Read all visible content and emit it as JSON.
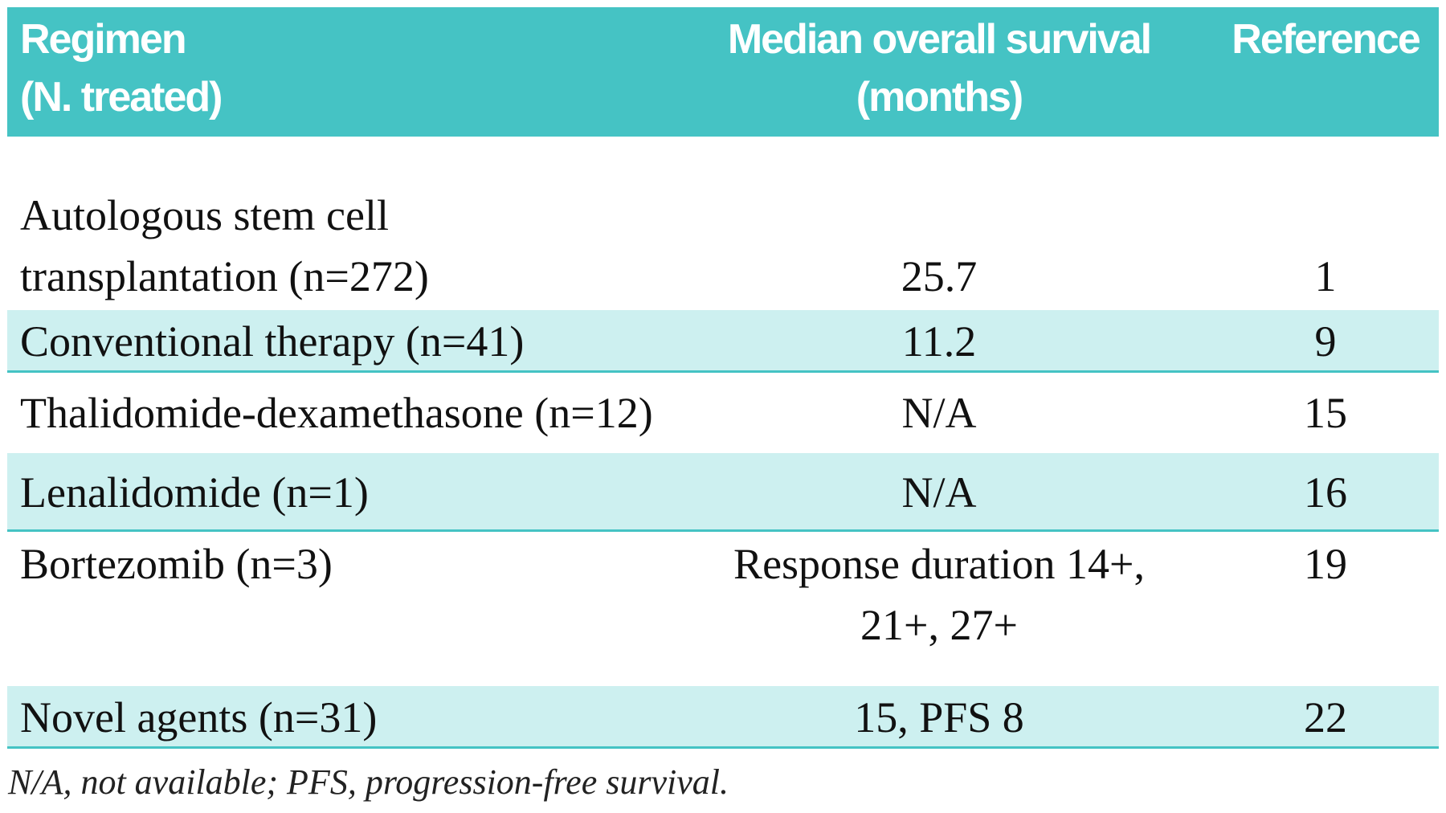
{
  "table": {
    "header": [
      "Regimen (N. treated)",
      "Median overall survival (months)",
      "Reference"
    ],
    "header_lines": [
      [
        "Regimen",
        "(N. treated)"
      ],
      [
        "Median overall survival",
        "(months)"
      ],
      [
        "Reference"
      ]
    ],
    "rows": [
      [
        [
          "Autologous stem cell",
          "transplantation (n=272)"
        ],
        "25.7",
        "1"
      ],
      [
        [
          "Conventional therapy (n=41)"
        ],
        "11.2",
        "9"
      ],
      [
        [
          "Thalidomide-dexamethasone (n=12)"
        ],
        "N/A",
        "15"
      ],
      [
        [
          "Lenalidomide (n=1)"
        ],
        "N/A",
        "16"
      ],
      [
        [
          "Bortezomib (n=3)"
        ],
        [
          "Response duration 14+,",
          "21+, 27+"
        ],
        "19"
      ],
      [
        [
          "Novel agents (n=31)"
        ],
        "15, PFS 8",
        "22"
      ]
    ]
  },
  "footnote": "N/A, not available; PFS, progression-free survival."
}
